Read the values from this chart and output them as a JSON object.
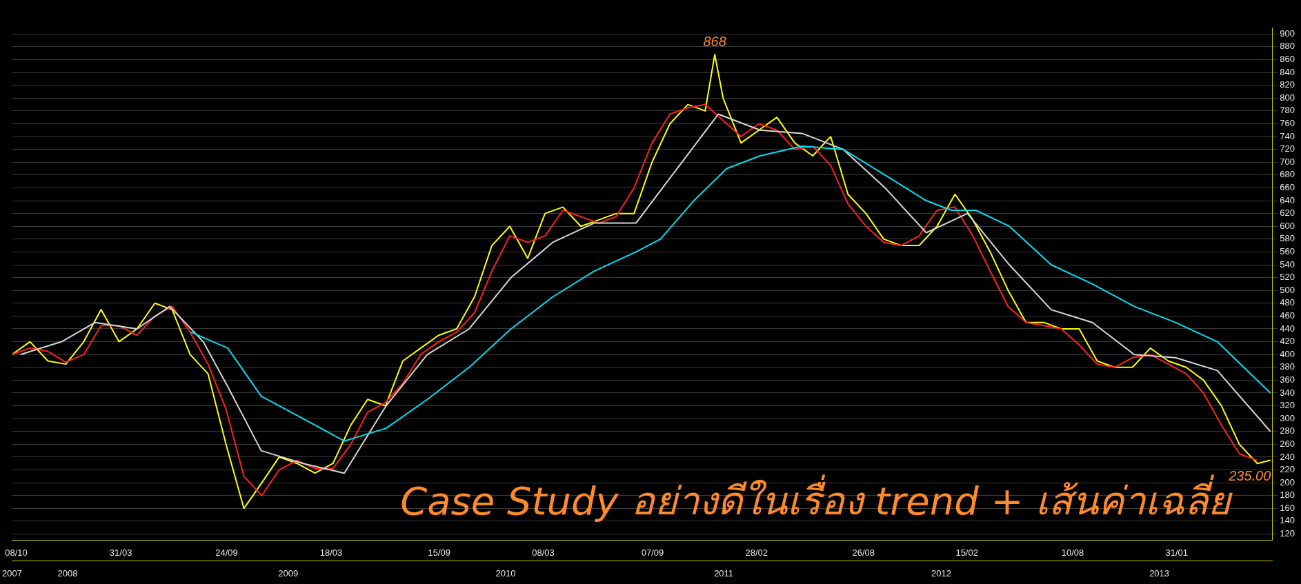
{
  "chart_data": {
    "type": "line",
    "xlim": [
      "2007-10-01",
      "2013-07-10"
    ],
    "xticks": [
      {
        "value": "2007-10-08",
        "label": "08/10"
      },
      {
        "value": "2008-03-31",
        "label": "31/03"
      },
      {
        "value": "2008-09-24",
        "label": "24/09"
      },
      {
        "value": "2009-03-18",
        "label": "18/03"
      },
      {
        "value": "2009-09-15",
        "label": "15/09"
      },
      {
        "value": "2010-03-08",
        "label": "08/03"
      },
      {
        "value": "2010-09-07",
        "label": "07/09"
      },
      {
        "value": "2011-02-28",
        "label": "28/02"
      },
      {
        "value": "2011-08-26",
        "label": "26/08"
      },
      {
        "value": "2012-02-15",
        "label": "15/02"
      },
      {
        "value": "2012-08-10",
        "label": "10/08"
      },
      {
        "value": "2013-01-31",
        "label": "31/01"
      }
    ],
    "x2lim": [
      "2007-10-01",
      "2013-07-10"
    ],
    "x2ticks": [
      {
        "value": "2007-10-01",
        "label": "2007"
      },
      {
        "value": "2008-01-02",
        "label": "2008"
      },
      {
        "value": "2009-01-05",
        "label": "2009"
      },
      {
        "value": "2010-01-04",
        "label": "2010"
      },
      {
        "value": "2011-01-04",
        "label": "2011"
      },
      {
        "value": "2012-01-03",
        "label": "2012"
      },
      {
        "value": "2013-01-02",
        "label": "2013"
      }
    ],
    "ylim": [
      110,
      910
    ],
    "yticks": [
      120,
      140,
      160,
      180,
      200,
      220,
      240,
      260,
      280,
      300,
      320,
      340,
      360,
      380,
      400,
      420,
      440,
      460,
      480,
      500,
      520,
      540,
      560,
      580,
      600,
      620,
      640,
      660,
      680,
      700,
      720,
      740,
      760,
      780,
      800,
      820,
      840,
      860,
      880,
      900
    ],
    "grid": "y",
    "series": [
      {
        "color": "#00e0f0",
        "x": [
          "2008-07-26",
          "2008-09-26",
          "2008-11-21",
          "2009-01-30",
          "2009-04-09",
          "2009-06-18",
          "2009-08-26",
          "2009-11-04",
          "2010-01-13",
          "2010-03-24",
          "2010-06-01",
          "2010-08-10",
          "2010-09-20",
          "2010-11-15",
          "2011-01-09",
          "2011-03-06",
          "2011-05-15",
          "2011-07-23",
          "2011-10-01",
          "2011-12-09",
          "2012-01-20",
          "2012-03-01",
          "2012-04-26",
          "2012-07-05",
          "2012-09-12",
          "2012-11-21",
          "2013-01-29",
          "2013-04-09",
          "2013-07-07"
        ],
        "values": [
          435,
          410,
          335,
          300,
          265,
          285,
          330,
          380,
          440,
          490,
          530,
          560,
          580,
          640,
          690,
          710,
          725,
          720,
          680,
          640,
          625,
          625,
          600,
          540,
          510,
          475,
          450,
          420,
          340
        ]
      },
      {
        "color": "#d8d8d8",
        "x": [
          "2007-10-15",
          "2007-12-23",
          "2008-02-17",
          "2008-04-27",
          "2008-06-21",
          "2008-08-16",
          "2008-09-26",
          "2008-11-21",
          "2009-01-30",
          "2009-04-09",
          "2009-06-18",
          "2009-08-26",
          "2009-11-04",
          "2010-01-13",
          "2010-03-24",
          "2010-06-01",
          "2010-08-10",
          "2010-10-18",
          "2010-12-26",
          "2011-03-06",
          "2011-05-15",
          "2011-07-23",
          "2011-10-01",
          "2011-12-09",
          "2012-02-16",
          "2012-04-26",
          "2012-07-05",
          "2012-09-12",
          "2012-11-21",
          "2013-01-29",
          "2013-04-09",
          "2013-07-07"
        ],
        "values": [
          400,
          420,
          450,
          440,
          475,
          420,
          350,
          250,
          230,
          215,
          320,
          400,
          440,
          520,
          575,
          605,
          605,
          690,
          775,
          750,
          745,
          720,
          660,
          590,
          620,
          540,
          470,
          450,
          400,
          395,
          375,
          280
        ]
      },
      {
        "color": "#ff2020",
        "x": [
          "2007-10-01",
          "2007-10-31",
          "2007-11-30",
          "2007-12-30",
          "2008-01-29",
          "2008-02-27",
          "2008-03-28",
          "2008-04-27",
          "2008-05-27",
          "2008-06-25",
          "2008-07-25",
          "2008-08-24",
          "2008-09-23",
          "2008-10-23",
          "2008-11-22",
          "2008-12-21",
          "2009-01-20",
          "2009-02-19",
          "2009-03-21",
          "2009-04-20",
          "2009-05-18",
          "2009-06-17",
          "2009-07-16",
          "2009-08-15",
          "2009-09-14",
          "2009-10-14",
          "2009-11-13",
          "2009-12-12",
          "2010-01-11",
          "2010-02-10",
          "2010-03-11",
          "2010-04-10",
          "2010-05-10",
          "2010-06-09",
          "2010-07-08",
          "2010-08-07",
          "2010-09-06",
          "2010-10-06",
          "2010-11-05",
          "2010-12-04",
          "2011-01-03",
          "2011-02-02",
          "2011-03-04",
          "2011-04-03",
          "2011-05-03",
          "2011-06-02",
          "2011-07-02",
          "2011-07-31",
          "2011-08-30",
          "2011-09-29",
          "2011-10-28",
          "2011-11-27",
          "2011-12-27",
          "2012-01-26",
          "2012-02-25",
          "2012-03-25",
          "2012-04-24",
          "2012-05-24",
          "2012-06-23",
          "2012-07-22",
          "2012-08-21",
          "2012-09-20",
          "2012-10-19",
          "2012-11-18",
          "2012-12-18",
          "2013-01-17",
          "2013-02-16",
          "2013-03-17",
          "2013-04-16",
          "2013-05-16",
          "2013-06-15"
        ],
        "values": [
          400,
          410,
          405,
          388,
          400,
          445,
          445,
          430,
          460,
          475,
          435,
          385,
          315,
          210,
          180,
          220,
          235,
          222,
          222,
          260,
          310,
          325,
          355,
          400,
          420,
          435,
          465,
          530,
          585,
          575,
          585,
          625,
          615,
          605,
          615,
          660,
          730,
          775,
          785,
          790,
          765,
          740,
          760,
          750,
          720,
          725,
          695,
          635,
          600,
          575,
          570,
          585,
          625,
          630,
          585,
          530,
          475,
          450,
          445,
          440,
          415,
          385,
          380,
          395,
          400,
          385,
          370,
          340,
          290,
          245,
          235
        ]
      },
      {
        "color": "#ffff00",
        "x": [
          "2007-10-01",
          "2007-10-31",
          "2007-11-30",
          "2007-12-30",
          "2008-01-29",
          "2008-02-27",
          "2008-03-28",
          "2008-04-27",
          "2008-05-27",
          "2008-06-25",
          "2008-07-25",
          "2008-08-24",
          "2008-09-23",
          "2008-10-23",
          "2008-11-22",
          "2008-12-21",
          "2009-01-20",
          "2009-02-19",
          "2009-03-21",
          "2009-04-20",
          "2009-05-18",
          "2009-06-17",
          "2009-07-16",
          "2009-08-15",
          "2009-09-14",
          "2009-10-14",
          "2009-11-13",
          "2009-12-12",
          "2010-01-11",
          "2010-02-10",
          "2010-03-11",
          "2010-04-10",
          "2010-05-10",
          "2010-06-09",
          "2010-07-08",
          "2010-08-07",
          "2010-09-06",
          "2010-10-06",
          "2010-11-05",
          "2010-12-04",
          "2010-12-20",
          "2011-01-03",
          "2011-02-02",
          "2011-03-04",
          "2011-04-03",
          "2011-05-03",
          "2011-06-02",
          "2011-07-02",
          "2011-07-31",
          "2011-08-30",
          "2011-09-29",
          "2011-10-28",
          "2011-11-27",
          "2011-12-27",
          "2012-01-26",
          "2012-02-25",
          "2012-03-25",
          "2012-04-24",
          "2012-05-24",
          "2012-06-23",
          "2012-07-22",
          "2012-08-21",
          "2012-09-20",
          "2012-10-19",
          "2012-11-18",
          "2012-12-18",
          "2013-01-17",
          "2013-02-16",
          "2013-03-17",
          "2013-04-16",
          "2013-05-16",
          "2013-06-15",
          "2013-07-07"
        ],
        "values": [
          400,
          420,
          390,
          385,
          420,
          470,
          420,
          440,
          480,
          470,
          400,
          370,
          260,
          160,
          200,
          240,
          230,
          215,
          230,
          290,
          330,
          320,
          390,
          410,
          430,
          440,
          490,
          570,
          600,
          550,
          620,
          630,
          600,
          610,
          620,
          620,
          700,
          760,
          790,
          780,
          868,
          800,
          730,
          750,
          770,
          730,
          710,
          740,
          650,
          620,
          580,
          570,
          570,
          600,
          650,
          610,
          560,
          500,
          450,
          450,
          440,
          440,
          390,
          380,
          380,
          410,
          390,
          380,
          360,
          320,
          260,
          230,
          235
        ]
      }
    ],
    "annotations": [
      {
        "text": "868",
        "x": "2010-12-20",
        "y": 868
      },
      {
        "text": "235.00",
        "x": "2013-07-07",
        "y": 235
      },
      "Case Study อย่างดีในเรื่อง trend + เส้นค่าเฉลี่ย"
    ]
  }
}
